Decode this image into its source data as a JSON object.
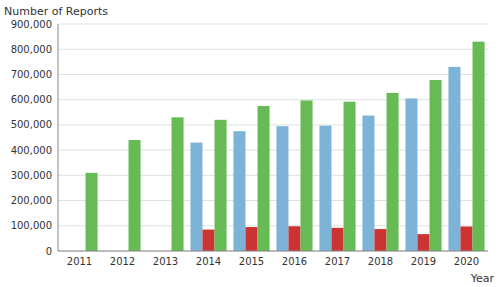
{
  "chart_data": {
    "type": "bar",
    "categories": [
      "2011",
      "2012",
      "2013",
      "2014",
      "2015",
      "2016",
      "2017",
      "2018",
      "2019",
      "2020"
    ],
    "series": [
      {
        "color": "#7EB3D8",
        "values": [
          0,
          0,
          0,
          430000,
          475000,
          495000,
          497000,
          537000,
          605000,
          730000
        ]
      },
      {
        "color": "#CC3333",
        "values": [
          0,
          0,
          0,
          85000,
          95000,
          98000,
          92000,
          87000,
          67000,
          97000
        ]
      },
      {
        "color": "#66BB55",
        "values": [
          310000,
          440000,
          530000,
          520000,
          575000,
          597000,
          592000,
          627000,
          678000,
          830000
        ]
      }
    ],
    "xlabel": "Year",
    "ylabel": "Number of Reports",
    "ylim": [
      0,
      900000
    ],
    "yticks": [
      0,
      {
        "value": 100000,
        "label": "100,000"
      },
      {
        "value": 200000,
        "label": "200,000"
      },
      {
        "value": 300000,
        "label": "300,000"
      },
      {
        "value": 400000,
        "label": "400,000"
      },
      {
        "value": 500000,
        "label": "500,000"
      },
      {
        "value": 600000,
        "label": "600,000"
      },
      {
        "value": 700000,
        "label": "700,000"
      },
      {
        "value": 800000,
        "label": "800,000"
      },
      {
        "value": 900000,
        "label": "900,000"
      }
    ],
    "grid": true
  }
}
